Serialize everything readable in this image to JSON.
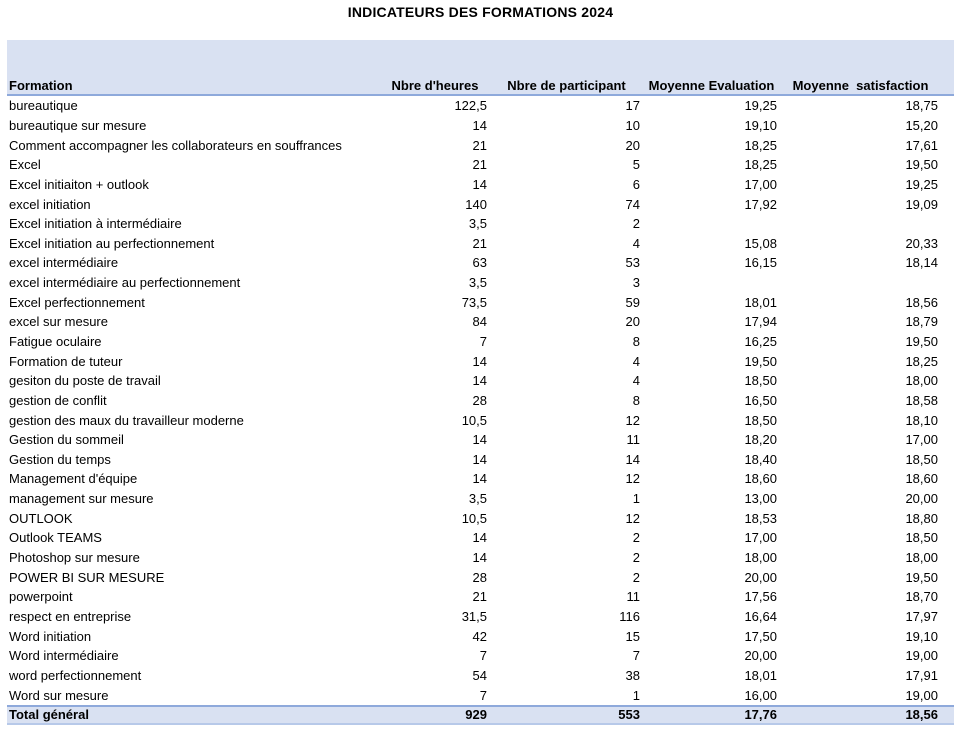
{
  "title": "INDICATEURS DES FORMATIONS 2024",
  "colors": {
    "band_fill": "#D9E1F2",
    "border_blue": "#8EA9DB",
    "border_light": "#B7C9E9",
    "text": "#000000",
    "background": "#FFFFFF"
  },
  "chart_data": {
    "type": "table",
    "title": "INDICATEURS DES FORMATIONS 2024",
    "columns": [
      "Formation",
      "Nbre d'heures",
      "Nbre de participant",
      "Moyenne Evaluation",
      "Moyenne  satisfaction"
    ],
    "rows": [
      [
        "bureautique",
        "122,5",
        "17",
        "19,25",
        "18,75"
      ],
      [
        "bureautique sur mesure",
        "14",
        "10",
        "19,10",
        "15,20"
      ],
      [
        "Comment accompagner les collaborateurs en souffrances",
        "21",
        "20",
        "18,25",
        "17,61"
      ],
      [
        "Excel",
        "21",
        "5",
        "18,25",
        "19,50"
      ],
      [
        "Excel initiaiton + outlook",
        "14",
        "6",
        "17,00",
        "19,25"
      ],
      [
        "excel initiation",
        "140",
        "74",
        "17,92",
        "19,09"
      ],
      [
        "Excel initiation à intermédiaire",
        "3,5",
        "2",
        "",
        ""
      ],
      [
        "Excel initiation au perfectionnement",
        "21",
        "4",
        "15,08",
        "20,33"
      ],
      [
        "excel intermédiaire",
        "63",
        "53",
        "16,15",
        "18,14"
      ],
      [
        "excel intermédiaire au perfectionnement",
        "3,5",
        "3",
        "",
        ""
      ],
      [
        "Excel perfectionnement",
        "73,5",
        "59",
        "18,01",
        "18,56"
      ],
      [
        "excel sur mesure",
        "84",
        "20",
        "17,94",
        "18,79"
      ],
      [
        "Fatigue oculaire",
        "7",
        "8",
        "16,25",
        "19,50"
      ],
      [
        "Formation de tuteur",
        "14",
        "4",
        "19,50",
        "18,25"
      ],
      [
        "gesiton du poste de travail",
        "14",
        "4",
        "18,50",
        "18,00"
      ],
      [
        "gestion de conflit",
        "28",
        "8",
        "16,50",
        "18,58"
      ],
      [
        "gestion des maux du travailleur moderne",
        "10,5",
        "12",
        "18,50",
        "18,10"
      ],
      [
        "Gestion du sommeil",
        "14",
        "11",
        "18,20",
        "17,00"
      ],
      [
        "Gestion du temps",
        "14",
        "14",
        "18,40",
        "18,50"
      ],
      [
        "Management d'équipe",
        "14",
        "12",
        "18,60",
        "18,60"
      ],
      [
        "management sur mesure",
        "3,5",
        "1",
        "13,00",
        "20,00"
      ],
      [
        "OUTLOOK",
        "10,5",
        "12",
        "18,53",
        "18,80"
      ],
      [
        "Outlook TEAMS",
        "14",
        "2",
        "17,00",
        "18,50"
      ],
      [
        "Photoshop sur mesure",
        "14",
        "2",
        "18,00",
        "18,00"
      ],
      [
        "POWER BI SUR MESURE",
        "28",
        "2",
        "20,00",
        "19,50"
      ],
      [
        "powerpoint",
        "21",
        "11",
        "17,56",
        "18,70"
      ],
      [
        "respect en entreprise",
        "31,5",
        "116",
        "16,64",
        "17,97"
      ],
      [
        "Word initiation",
        "42",
        "15",
        "17,50",
        "19,10"
      ],
      [
        "Word intermédiaire",
        "7",
        "7",
        "20,00",
        "19,00"
      ],
      [
        "word perfectionnement",
        "54",
        "38",
        "18,01",
        "17,91"
      ],
      [
        "Word sur mesure",
        "7",
        "1",
        "16,00",
        "19,00"
      ]
    ],
    "total_row": [
      "Total général",
      "929",
      "553",
      "17,76",
      "18,56"
    ]
  }
}
